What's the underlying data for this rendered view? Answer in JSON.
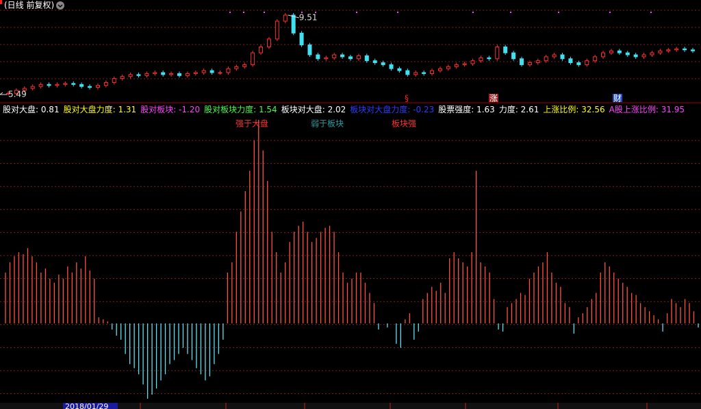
{
  "header": {
    "title": "(日线 前复权)"
  },
  "price_chart": {
    "max": 9.51,
    "min": 5.49,
    "closes": [
      5.55,
      5.7,
      5.8,
      5.9,
      6.0,
      5.95,
      6.0,
      6.05,
      6.0,
      5.9,
      5.85,
      5.95,
      6.1,
      6.3,
      6.4,
      6.5,
      6.45,
      6.55,
      6.6,
      6.5,
      6.55,
      6.45,
      6.55,
      6.6,
      6.7,
      6.6,
      6.6,
      6.8,
      6.9,
      7.0,
      7.6,
      7.9,
      8.3,
      9.2,
      9.51,
      8.6,
      8.0,
      7.5,
      7.3,
      7.35,
      7.5,
      7.4,
      7.3,
      7.45,
      7.2,
      7.1,
      7.0,
      6.8,
      6.7,
      6.5,
      6.6,
      6.55,
      6.7,
      6.8,
      6.9,
      7.0,
      7.05,
      7.2,
      7.35,
      7.3,
      7.9,
      7.6,
      7.3,
      7.0,
      7.1,
      7.2,
      7.4,
      7.5,
      7.3,
      7.1,
      7.0,
      7.2,
      7.4,
      7.6,
      7.7,
      7.6,
      7.5,
      7.4,
      7.5,
      7.6,
      7.7,
      7.75,
      7.8,
      7.75,
      7.7
    ],
    "markers": [
      "§",
      "涨",
      "财"
    ]
  },
  "indicators": [
    {
      "label": "股对大盘:",
      "value": "0.81",
      "color": "#ffffff"
    },
    {
      "label": "股对大盘力度:",
      "value": "1.31",
      "color": "#ffff00"
    },
    {
      "label": "股对板块:",
      "value": "-1.20",
      "color": "#ff40ff"
    },
    {
      "label": "股对板块力度:",
      "value": "1.54",
      "color": "#40ff40"
    },
    {
      "label": "板块对大盘:",
      "value": "2.02",
      "color": "#ffffff"
    },
    {
      "label": "板块对大盘力度:",
      "value": "-0.23",
      "color": "#2a3cff"
    },
    {
      "label": "股票强度:",
      "value": "1.63",
      "color": "#ffffff"
    },
    {
      "label": "力度:",
      "value": "2.61",
      "color": "#ffffff"
    },
    {
      "label": "上涨比例:",
      "value": "32.56",
      "color": "#ffff00"
    },
    {
      "label": "A股上涨比例:",
      "value": "31.95",
      "color": "#ff40ff"
    }
  ],
  "indicator_chart": {
    "ylim": [
      -37,
      100
    ],
    "values": [
      25,
      30,
      33,
      35,
      34,
      37,
      33,
      30,
      25,
      27,
      22,
      20,
      24,
      22,
      28,
      25,
      30,
      27,
      33,
      26,
      22,
      3,
      2,
      1,
      -3,
      -6,
      -8,
      -15,
      -20,
      -22,
      -25,
      -30,
      -37,
      -35,
      -32,
      -28,
      -25,
      -20,
      -18,
      -15,
      -12,
      -15,
      -18,
      -22,
      -25,
      -28,
      -26,
      -20,
      -15,
      -8,
      25,
      30,
      45,
      55,
      65,
      75,
      90,
      100,
      85,
      70,
      45,
      35,
      25,
      30,
      40,
      45,
      48,
      50,
      45,
      40,
      42,
      45,
      47,
      48,
      45,
      35,
      25,
      20,
      22,
      25,
      25,
      20,
      15,
      10,
      -3,
      0,
      -2,
      0,
      -10,
      -12,
      2,
      5,
      -8,
      -4,
      12,
      15,
      18,
      16,
      20,
      15,
      32,
      35,
      32,
      30,
      28,
      35,
      75,
      30,
      28,
      25,
      12,
      -3,
      -4,
      8,
      10,
      12,
      15,
      14,
      22,
      25,
      28,
      30,
      35,
      25,
      20,
      18,
      10,
      8,
      -5,
      3,
      5,
      8,
      12,
      15,
      25,
      30,
      28,
      25,
      22,
      20,
      18,
      15,
      14,
      10,
      8,
      6,
      4,
      2,
      -4,
      5,
      12,
      10,
      8,
      12,
      10,
      6,
      -2
    ],
    "annotations": [
      {
        "text": "强于大盘",
        "color": "#ff3030"
      },
      {
        "text": "弱于板块",
        "color": "#20a0a0"
      },
      {
        "text": "板块强",
        "color": "#ff3030"
      }
    ]
  },
  "footer": {
    "date": "2018/01/29"
  }
}
